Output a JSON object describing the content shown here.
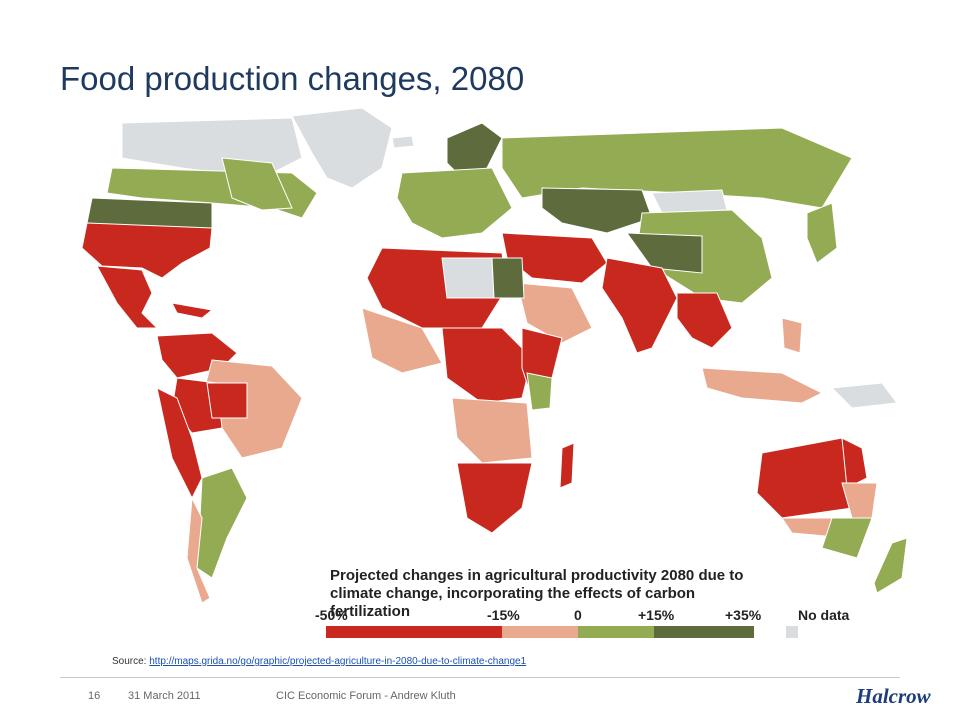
{
  "slide": {
    "title": "Food production changes, 2080",
    "page_number": "16",
    "date": "31 March 2011",
    "footer_text": "CIC Economic Forum - Andrew Kluth",
    "logo_text": "Halcrow"
  },
  "legend": {
    "title_line1": "Projected changes in agricultural productivity 2080 due to",
    "title_line2": "climate change, incorporating the effects of carbon fertilization",
    "ticks": [
      "-50%",
      "-15%",
      "0",
      "+15%",
      "+35%"
    ],
    "no_data_label": "No data",
    "colors": {
      "strong_loss": "#c8281e",
      "loss": "#e9a98e",
      "gain": "#93ab52",
      "strong_gain": "#5e6b3c",
      "no_data": "#d9dde0",
      "ocean": "#ffffff"
    }
  },
  "source": {
    "prefix": "Source: ",
    "link_text": "http://maps.grida.no/go/graphic/projected-agriculture-in-2080-due-to-climate-change1"
  }
}
